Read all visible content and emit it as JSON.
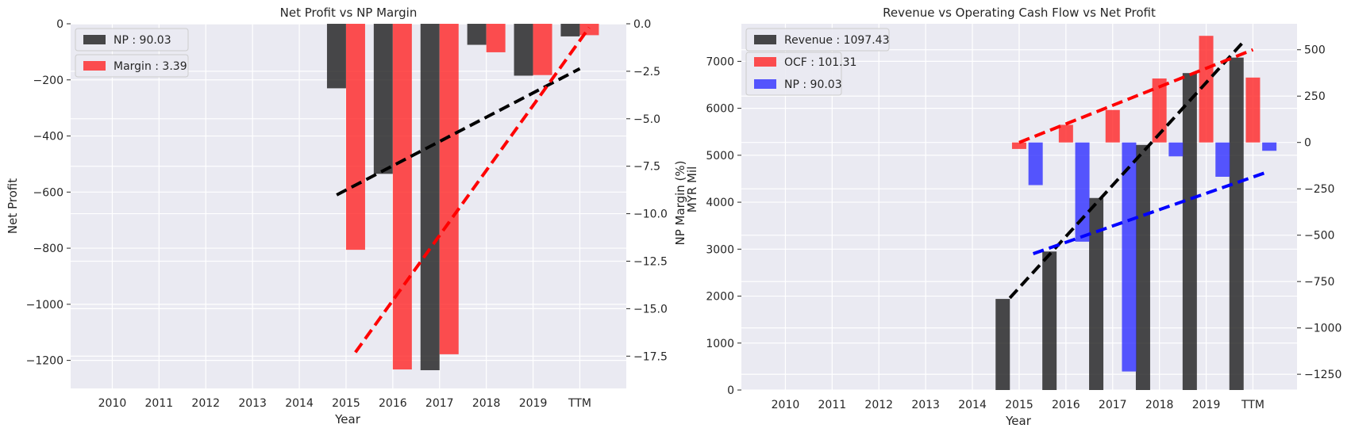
{
  "chart_data": [
    {
      "type": "bar",
      "title": "Net Profit vs NP Margin",
      "xlabel": "Year",
      "ylabel": "Net Profit",
      "ylabel_right": "NP Margin (%)",
      "categories": [
        "2010",
        "2011",
        "2012",
        "2013",
        "2014",
        "2015",
        "2016",
        "2017",
        "2018",
        "2019",
        "TTM"
      ],
      "ylim": [
        -1300,
        0
      ],
      "ylim_right": [
        -19.2,
        0
      ],
      "yticks": [
        0,
        -200,
        -400,
        -600,
        -800,
        -1000,
        -1200
      ],
      "yticks_right": [
        0.0,
        -2.5,
        -5.0,
        -7.5,
        -10.0,
        -12.5,
        -15.0,
        -17.5
      ],
      "series": [
        {
          "name": "NP : 90.03",
          "axis": "left",
          "color": "#222222",
          "values": [
            null,
            null,
            null,
            null,
            null,
            -230,
            -535,
            -1235,
            -75,
            -185,
            -45
          ]
        },
        {
          "name": "Margin : 3.39",
          "axis": "right",
          "color": "#ff2a2a",
          "values": [
            null,
            null,
            null,
            null,
            null,
            -11.9,
            -18.2,
            -17.4,
            -1.5,
            -2.7,
            -0.6
          ]
        }
      ],
      "trendlines": [
        {
          "axis": "left",
          "color": "#000000",
          "from": [
            4.8,
            -610
          ],
          "to": [
            10.0,
            -160
          ]
        },
        {
          "axis": "right",
          "color": "#ff0000",
          "from": [
            5.2,
            -17.3
          ],
          "to": [
            10.2,
            -0.2
          ]
        }
      ],
      "legend": "top-left",
      "grid": true
    },
    {
      "type": "bar",
      "title": "Revenue vs Operating Cash Flow vs Net Profit",
      "xlabel": "Year",
      "ylabel": "",
      "ylabel_right": "MYR Mil",
      "categories": [
        "2010",
        "2011",
        "2012",
        "2013",
        "2014",
        "2015",
        "2016",
        "2017",
        "2018",
        "2019",
        "TTM"
      ],
      "ylim": [
        0,
        7800
      ],
      "ylim_right": [
        -1335,
        640
      ],
      "yticks": [
        0,
        1000,
        2000,
        3000,
        4000,
        5000,
        6000,
        7000
      ],
      "yticks_right": [
        500,
        250,
        0,
        -250,
        -500,
        -750,
        -1000,
        -1250
      ],
      "series": [
        {
          "name": "Revenue : 1097.43",
          "axis": "left",
          "color": "#222222",
          "values": [
            null,
            null,
            null,
            null,
            null,
            1940,
            2950,
            4090,
            5220,
            6750,
            7080
          ]
        },
        {
          "name": "OCF : 101.31",
          "axis": "right",
          "color": "#ff2a2a",
          "values": [
            null,
            null,
            null,
            null,
            null,
            -35,
            95,
            175,
            345,
            575,
            350
          ]
        },
        {
          "name": "NP : 90.03",
          "axis": "right",
          "color": "#3333ff",
          "values": [
            null,
            null,
            null,
            null,
            null,
            -230,
            -535,
            -1235,
            -75,
            -185,
            -45
          ]
        }
      ],
      "trendlines": [
        {
          "axis": "left",
          "color": "#000000",
          "from": [
            4.8,
            1960
          ],
          "to": [
            9.8,
            7420
          ]
        },
        {
          "axis": "right",
          "color": "#ff0000",
          "from": [
            5.0,
            0
          ],
          "to": [
            10.0,
            500
          ]
        },
        {
          "axis": "right",
          "color": "#0000ff",
          "from": [
            5.3,
            -600
          ],
          "to": [
            10.3,
            -160
          ]
        }
      ],
      "legend": "top-left",
      "grid": true
    }
  ]
}
